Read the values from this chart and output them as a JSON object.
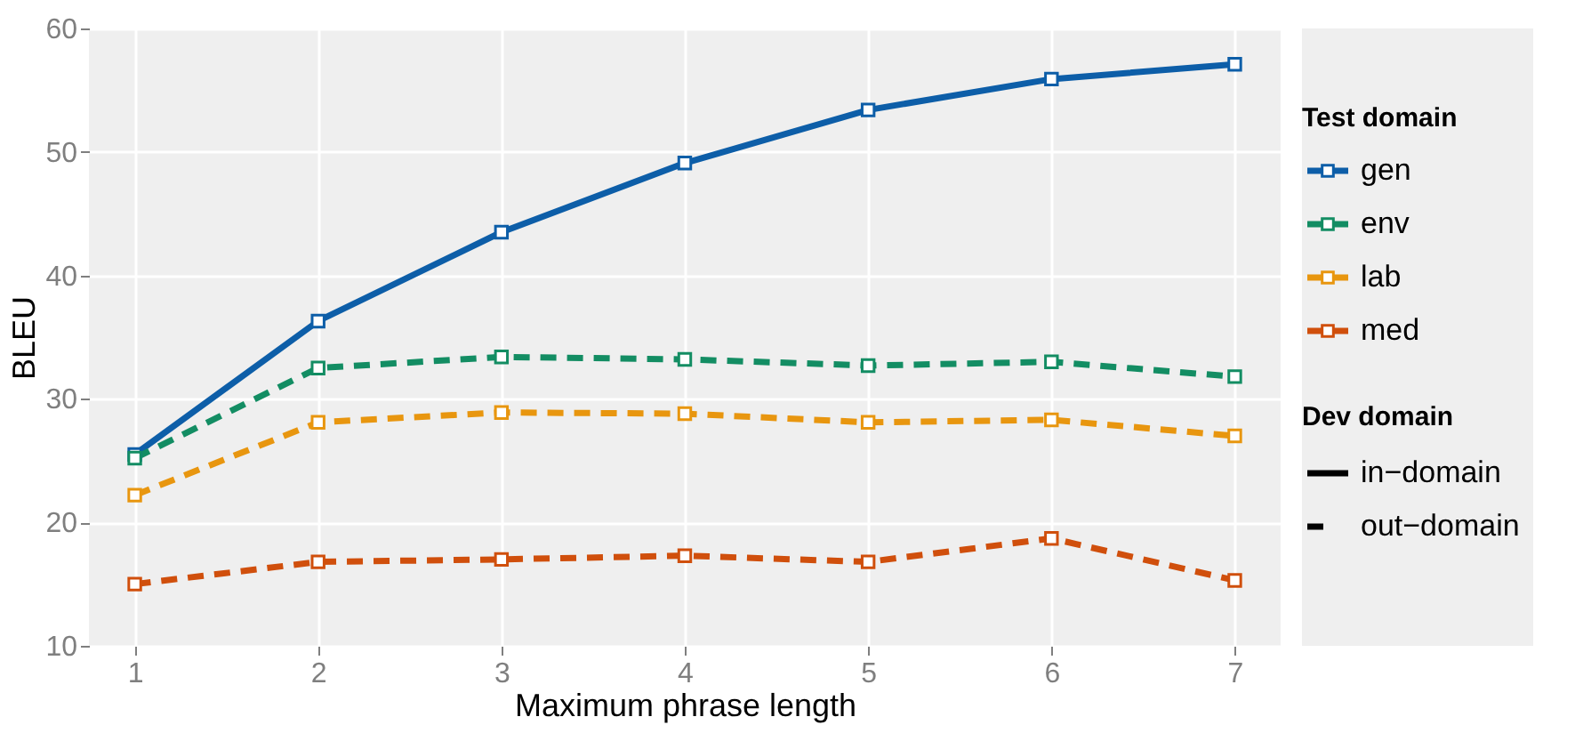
{
  "chart_data": {
    "type": "line",
    "xlabel": "Maximum phrase length",
    "ylabel": "BLEU",
    "legend_title": [
      "Test domain",
      "Dev domain"
    ],
    "annotations": [
      "in−domain",
      "out−domain"
    ],
    "x": [
      1,
      2,
      3,
      4,
      5,
      6,
      7
    ],
    "xlim": [
      0.75,
      7.25
    ],
    "xticks": [
      1,
      2,
      3,
      4,
      5,
      6,
      7
    ],
    "ylim": [
      10,
      60
    ],
    "yticks": [
      10,
      20,
      30,
      40,
      50,
      60
    ],
    "grid": true,
    "legend": "right",
    "marker": "square",
    "series": [
      {
        "name": "gen",
        "color": "#0d5ea8",
        "line_style": "solid",
        "values": [
          25.5,
          36.3,
          43.5,
          49.1,
          53.4,
          55.9,
          57.1
        ]
      },
      {
        "name": "env",
        "color": "#138d63",
        "line_style": "dashed",
        "values": [
          25.2,
          32.5,
          33.4,
          33.2,
          32.7,
          33.0,
          31.8
        ]
      },
      {
        "name": "lab",
        "color": "#e8960f",
        "line_style": "dashed",
        "values": [
          22.2,
          28.1,
          28.9,
          28.8,
          28.1,
          28.3,
          27.0
        ]
      },
      {
        "name": "med",
        "color": "#d04f0c",
        "line_style": "dashed",
        "values": [
          15.0,
          16.8,
          17.0,
          17.3,
          16.8,
          18.7,
          15.3
        ]
      }
    ]
  }
}
